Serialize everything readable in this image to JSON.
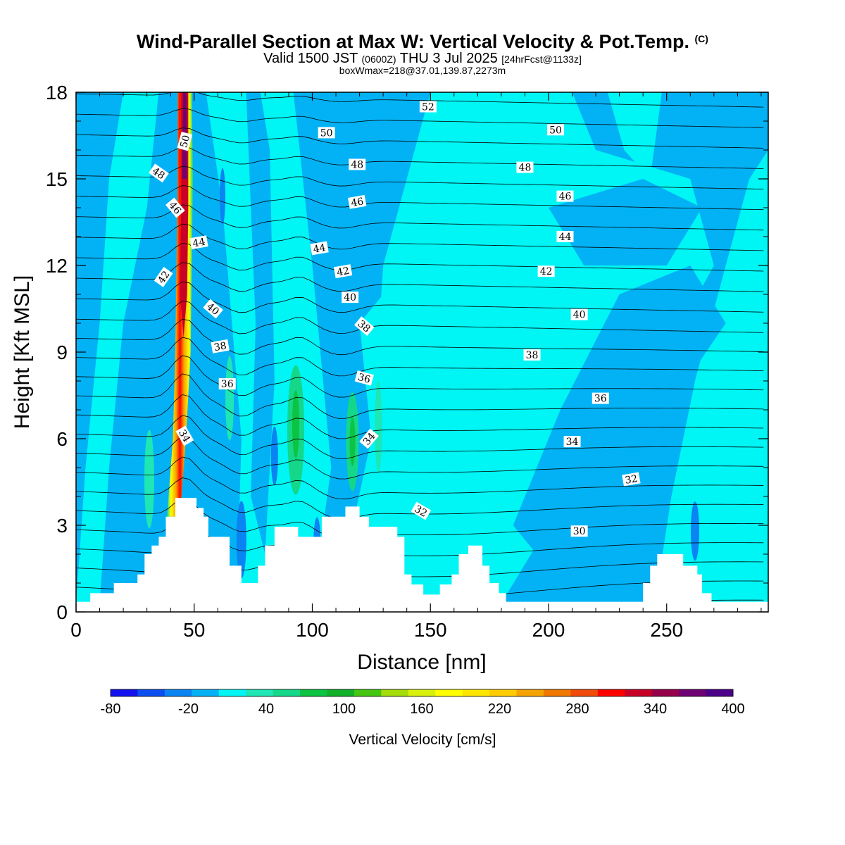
{
  "header": {
    "title": "Wind-Parallel Section at Max W: Vertical Velocity & Pot.Temp.",
    "copyright": "(C)",
    "valid_main": "Valid 1500 JST",
    "valid_zulu": "(0600Z)",
    "valid_date": "THU 3 Jul 2025",
    "forecast": "[24hrFcst@1133z]",
    "box_info": "boxWmax=218@37.01,139.87,2273m"
  },
  "chart_data": {
    "type": "heatmap",
    "xlabel": "Distance [nm]",
    "ylabel": "Height [Kft MSL]",
    "xlim": [
      0,
      293
    ],
    "ylim": [
      0,
      18
    ],
    "x_ticks": [
      0,
      50,
      100,
      150,
      200,
      250
    ],
    "y_ticks": [
      0,
      3,
      6,
      9,
      12,
      15,
      18
    ],
    "colorbar": {
      "label": "Vertical Velocity [cm/s]",
      "range": [
        -80,
        400
      ],
      "tick_labels": [
        "-80",
        "-20",
        "40",
        "100",
        "160",
        "220",
        "280",
        "340",
        "400"
      ],
      "colors": [
        "#1212ee",
        "#0c4ef0",
        "#0a84f2",
        "#03b2f5",
        "#00f5f5",
        "#1ee6b4",
        "#14d78a",
        "#0cc342",
        "#12af28",
        "#46c612",
        "#a4dc0a",
        "#d8f00c",
        "#ffff00",
        "#ffe600",
        "#ffcc00",
        "#f5a300",
        "#f07800",
        "#f04b0a",
        "#ff0000",
        "#c80028",
        "#96004b",
        "#6e0073",
        "#4b0087"
      ]
    },
    "terrain_profile": [
      [
        0,
        0.35
      ],
      [
        6,
        0.35
      ],
      [
        6,
        0.65
      ],
      [
        16,
        0.65
      ],
      [
        16,
        1.0
      ],
      [
        26,
        1.0
      ],
      [
        26,
        1.3
      ],
      [
        29,
        1.3
      ],
      [
        29,
        2.0
      ],
      [
        32,
        2.0
      ],
      [
        32,
        2.3
      ],
      [
        35,
        2.3
      ],
      [
        35,
        2.6
      ],
      [
        38,
        2.6
      ],
      [
        38,
        3.3
      ],
      [
        42,
        3.3
      ],
      [
        42,
        3.95
      ],
      [
        51,
        3.95
      ],
      [
        51,
        3.6
      ],
      [
        54,
        3.6
      ],
      [
        54,
        3.3
      ],
      [
        56,
        3.3
      ],
      [
        56,
        2.6
      ],
      [
        65,
        2.6
      ],
      [
        65,
        1.6
      ],
      [
        70,
        1.6
      ],
      [
        70,
        1.0
      ],
      [
        77,
        1.0
      ],
      [
        77,
        1.6
      ],
      [
        80,
        1.6
      ],
      [
        80,
        2.3
      ],
      [
        84,
        2.3
      ],
      [
        84,
        2.95
      ],
      [
        94,
        2.95
      ],
      [
        94,
        2.6
      ],
      [
        104,
        2.6
      ],
      [
        104,
        3.3
      ],
      [
        114,
        3.3
      ],
      [
        114,
        3.65
      ],
      [
        120,
        3.65
      ],
      [
        120,
        3.3
      ],
      [
        124,
        3.3
      ],
      [
        124,
        2.95
      ],
      [
        136,
        2.95
      ],
      [
        136,
        2.6
      ],
      [
        139,
        2.6
      ],
      [
        139,
        1.3
      ],
      [
        142,
        1.3
      ],
      [
        142,
        0.95
      ],
      [
        147,
        0.95
      ],
      [
        147,
        0.6
      ],
      [
        154,
        0.6
      ],
      [
        154,
        0.95
      ],
      [
        159,
        0.95
      ],
      [
        159,
        1.3
      ],
      [
        162,
        1.3
      ],
      [
        162,
        2.0
      ],
      [
        166,
        2.0
      ],
      [
        166,
        2.3
      ],
      [
        172,
        2.3
      ],
      [
        172,
        1.6
      ],
      [
        175,
        1.6
      ],
      [
        175,
        1.0
      ],
      [
        179,
        1.0
      ],
      [
        179,
        0.65
      ],
      [
        182,
        0.65
      ],
      [
        182,
        0.35
      ],
      [
        240,
        0.35
      ],
      [
        240,
        1.0
      ],
      [
        243,
        1.0
      ],
      [
        243,
        1.6
      ],
      [
        246,
        1.6
      ],
      [
        246,
        2.0
      ],
      [
        257,
        2.0
      ],
      [
        257,
        1.6
      ],
      [
        263,
        1.6
      ],
      [
        263,
        1.3
      ],
      [
        265,
        1.3
      ],
      [
        265,
        0.65
      ],
      [
        269,
        0.65
      ],
      [
        269,
        0.35
      ],
      [
        293,
        0.35
      ]
    ],
    "theta_contour_labels": [
      {
        "text": "52",
        "x": 149,
        "y": 17.5,
        "rot": 0
      },
      {
        "text": "50",
        "x": 106,
        "y": 16.6,
        "rot": 0
      },
      {
        "text": "50",
        "x": 203,
        "y": 16.7,
        "rot": 0
      },
      {
        "text": "50",
        "x": 46,
        "y": 16.3,
        "rot": -75
      },
      {
        "text": "48",
        "x": 119,
        "y": 15.5,
        "rot": 0
      },
      {
        "text": "48",
        "x": 190,
        "y": 15.4,
        "rot": 0
      },
      {
        "text": "48",
        "x": 35,
        "y": 15.2,
        "rot": 35
      },
      {
        "text": "46",
        "x": 119,
        "y": 14.2,
        "rot": -10
      },
      {
        "text": "46",
        "x": 207,
        "y": 14.4,
        "rot": 0
      },
      {
        "text": "46",
        "x": 42,
        "y": 14.0,
        "rot": 50
      },
      {
        "text": "44",
        "x": 207,
        "y": 13.0,
        "rot": 0
      },
      {
        "text": "44",
        "x": 103,
        "y": 12.6,
        "rot": -10
      },
      {
        "text": "44",
        "x": 52,
        "y": 12.8,
        "rot": -10
      },
      {
        "text": "42",
        "x": 199,
        "y": 11.8,
        "rot": 0
      },
      {
        "text": "42",
        "x": 113,
        "y": 11.8,
        "rot": -10
      },
      {
        "text": "42",
        "x": 37,
        "y": 11.6,
        "rot": -55
      },
      {
        "text": "40",
        "x": 116,
        "y": 10.9,
        "rot": 0
      },
      {
        "text": "40",
        "x": 213,
        "y": 10.3,
        "rot": 0
      },
      {
        "text": "40",
        "x": 58,
        "y": 10.5,
        "rot": 40
      },
      {
        "text": "38",
        "x": 122,
        "y": 9.9,
        "rot": 40
      },
      {
        "text": "38",
        "x": 61,
        "y": 9.2,
        "rot": -10
      },
      {
        "text": "38",
        "x": 193,
        "y": 8.9,
        "rot": 0
      },
      {
        "text": "36",
        "x": 122,
        "y": 8.1,
        "rot": 15
      },
      {
        "text": "36",
        "x": 64,
        "y": 7.9,
        "rot": 0
      },
      {
        "text": "36",
        "x": 222,
        "y": 7.4,
        "rot": 0
      },
      {
        "text": "34",
        "x": 46,
        "y": 6.1,
        "rot": 60
      },
      {
        "text": "34",
        "x": 124,
        "y": 6.0,
        "rot": -50
      },
      {
        "text": "34",
        "x": 210,
        "y": 5.9,
        "rot": 0
      },
      {
        "text": "32",
        "x": 235,
        "y": 4.6,
        "rot": -10
      },
      {
        "text": "32",
        "x": 146,
        "y": 3.5,
        "rot": 30
      },
      {
        "text": "30",
        "x": 213,
        "y": 2.8,
        "rot": 0
      }
    ]
  }
}
